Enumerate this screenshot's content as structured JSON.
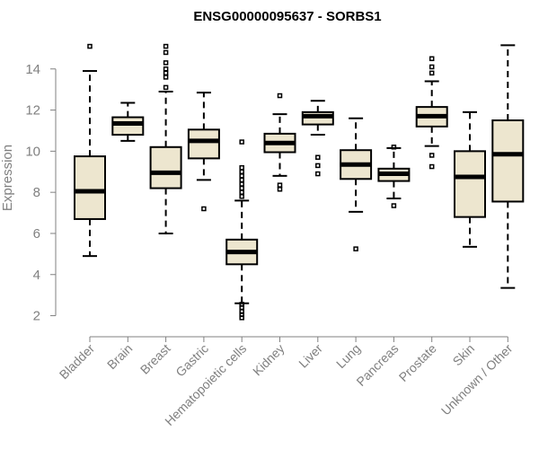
{
  "chart_data": {
    "type": "boxplot",
    "title": "ENSG00000095637 - SORBS1",
    "xlabel": "",
    "ylabel": "Expression",
    "ylim": [
      1.5,
      15.3
    ],
    "yticks": [
      2,
      4,
      6,
      8,
      10,
      12,
      14
    ],
    "box_color": "#ede6cf",
    "categories": [
      "Bladder",
      "Brain",
      "Breast",
      "Gastric",
      "Hematopoietic cells",
      "Kidney",
      "Liver",
      "Lung",
      "Pancreas",
      "Prostate",
      "Skin",
      "Unknown / Other"
    ],
    "boxes": [
      {
        "name": "Bladder",
        "whisker_low": 4.9,
        "q1": 6.7,
        "median": 8.05,
        "q3": 9.75,
        "whisker_high": 13.9,
        "outliers": [
          15.1
        ]
      },
      {
        "name": "Brain",
        "whisker_low": 10.5,
        "q1": 10.8,
        "median": 11.35,
        "q3": 11.65,
        "whisker_high": 12.35,
        "outliers": []
      },
      {
        "name": "Breast",
        "whisker_low": 6.0,
        "q1": 8.2,
        "median": 8.95,
        "q3": 10.2,
        "whisker_high": 12.9,
        "outliers": [
          13.1,
          13.6,
          13.8,
          14.0,
          14.3,
          14.8,
          15.1
        ]
      },
      {
        "name": "Gastric",
        "whisker_low": 8.6,
        "q1": 9.65,
        "median": 10.5,
        "q3": 11.05,
        "whisker_high": 12.85,
        "outliers": [
          7.2
        ]
      },
      {
        "name": "Hematopoietic cells",
        "whisker_low": 2.6,
        "q1": 4.5,
        "median": 5.1,
        "q3": 5.7,
        "whisker_high": 7.6,
        "outliers": [
          1.9,
          2.05,
          2.2,
          2.4,
          2.55,
          7.8,
          8.0,
          8.2,
          8.4,
          8.6,
          8.8,
          9.0,
          9.2,
          10.45
        ]
      },
      {
        "name": "Kidney",
        "whisker_low": 8.8,
        "q1": 9.95,
        "median": 10.4,
        "q3": 10.85,
        "whisker_high": 11.8,
        "outliers": [
          8.15,
          8.35,
          12.7
        ]
      },
      {
        "name": "Liver",
        "whisker_low": 10.8,
        "q1": 11.3,
        "median": 11.7,
        "q3": 11.9,
        "whisker_high": 12.45,
        "outliers": [
          8.9,
          9.3,
          9.7
        ]
      },
      {
        "name": "Lung",
        "whisker_low": 7.05,
        "q1": 8.65,
        "median": 9.35,
        "q3": 10.05,
        "whisker_high": 11.6,
        "outliers": [
          5.25
        ]
      },
      {
        "name": "Pancreas",
        "whisker_low": 7.7,
        "q1": 8.55,
        "median": 8.9,
        "q3": 9.15,
        "whisker_high": 10.15,
        "outliers": [
          7.35,
          10.2
        ]
      },
      {
        "name": "Prostate",
        "whisker_low": 10.25,
        "q1": 11.2,
        "median": 11.7,
        "q3": 12.15,
        "whisker_high": 13.4,
        "outliers": [
          9.25,
          9.8,
          13.8,
          14.1,
          14.5
        ]
      },
      {
        "name": "Skin",
        "whisker_low": 5.35,
        "q1": 6.8,
        "median": 8.75,
        "q3": 10.0,
        "whisker_high": 11.9,
        "outliers": []
      },
      {
        "name": "Unknown / Other",
        "whisker_low": 3.35,
        "q1": 7.55,
        "median": 9.85,
        "q3": 11.5,
        "whisker_high": 15.15,
        "outliers": []
      }
    ]
  }
}
